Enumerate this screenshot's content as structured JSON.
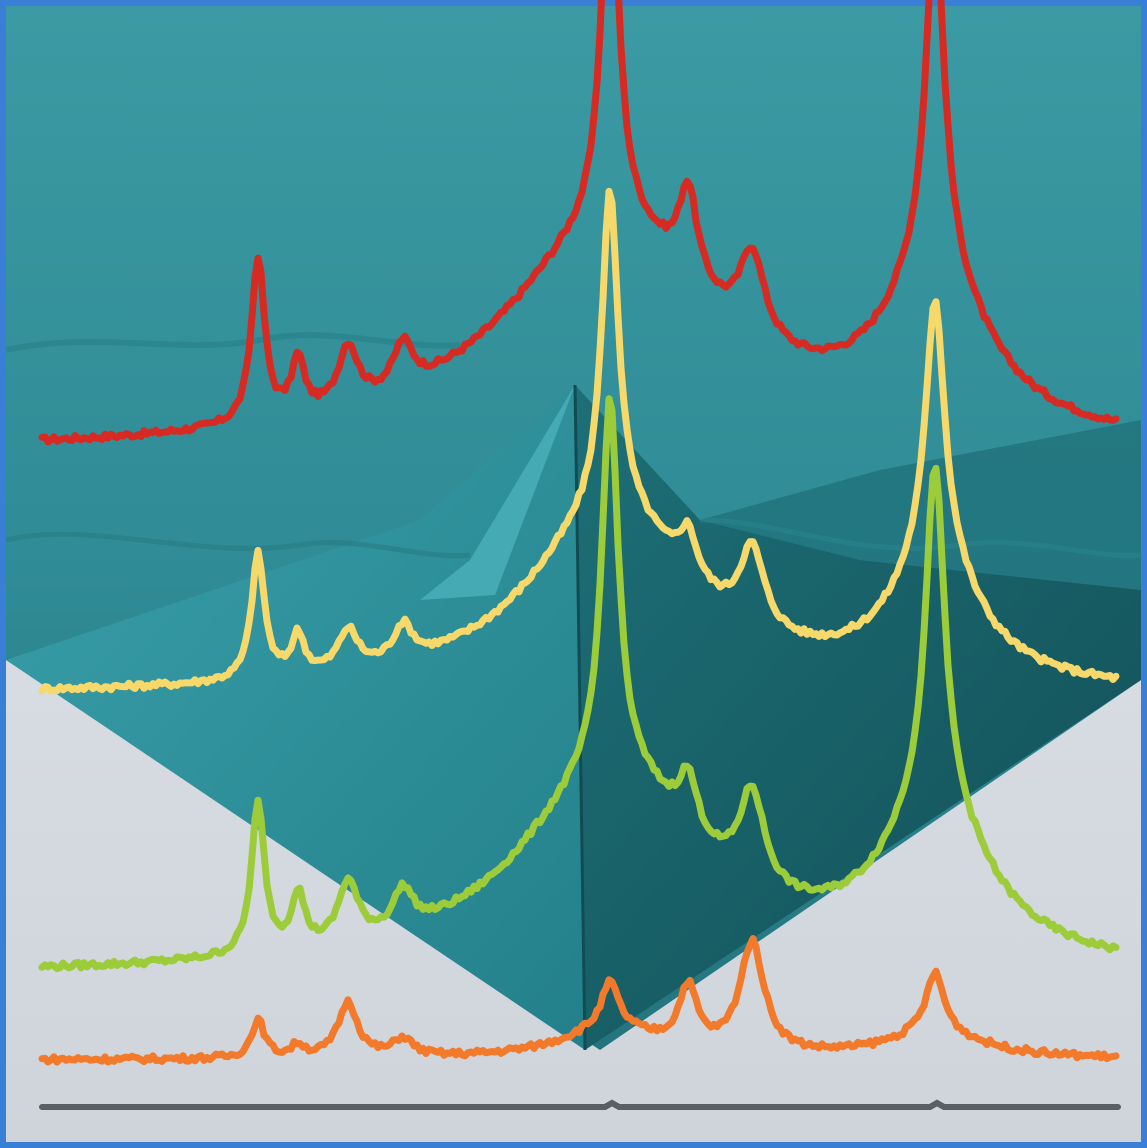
{
  "artwork": {
    "frame_color": "#3a7fd6",
    "background_top_color": "#2f8b95",
    "background_bottom_color": "#d8dde4",
    "pyramid_light_color": "#2c8c97",
    "pyramid_dark_color": "#175f67",
    "pyramid_highlight_color": "#49aab5",
    "spectra": [
      {
        "id": "red",
        "color": "#d62a22"
      },
      {
        "id": "yellow",
        "color": "#f6d96a"
      },
      {
        "id": "green",
        "color": "#9ccc3a"
      },
      {
        "id": "orange",
        "color": "#f37a2a"
      },
      {
        "id": "baseline",
        "color": "#5b5f65"
      }
    ]
  }
}
